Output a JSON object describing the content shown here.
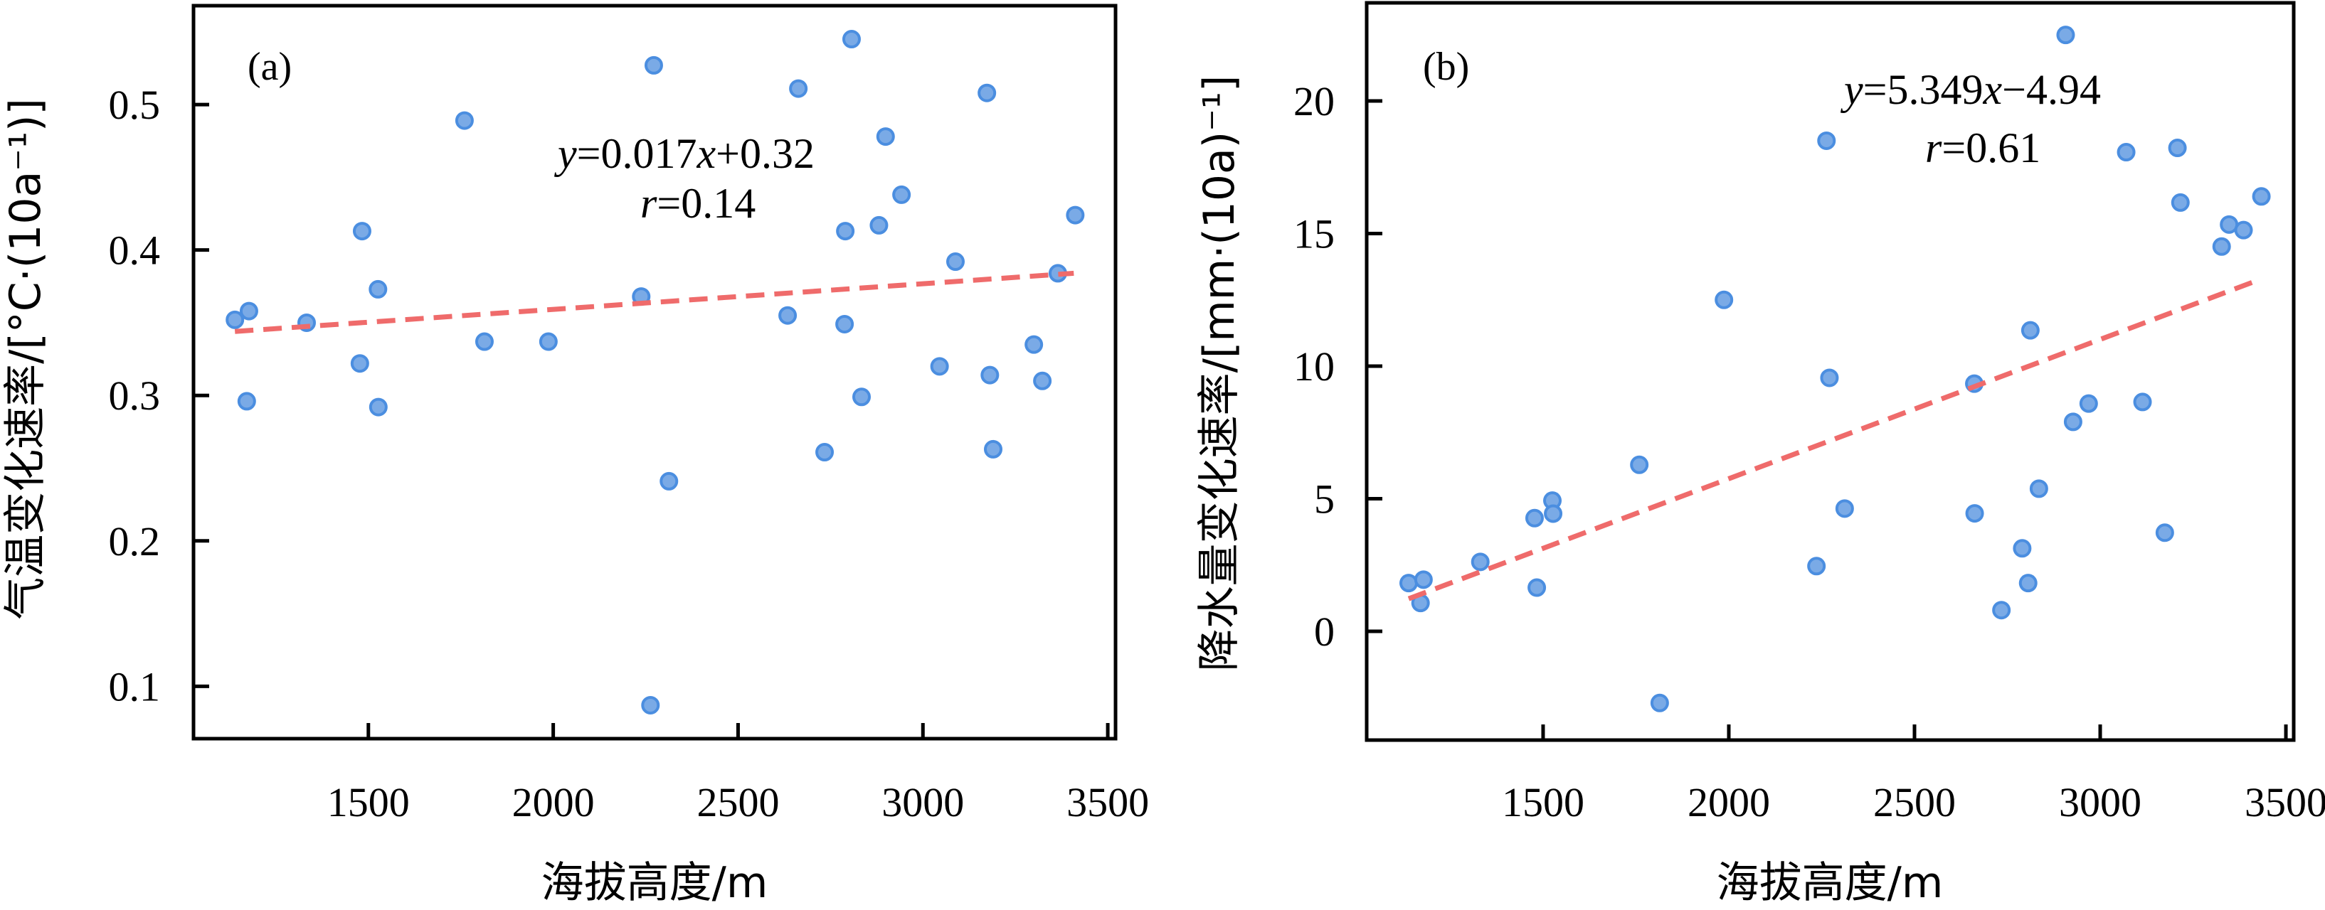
{
  "chart_data": [
    {
      "type": "scatter",
      "panel_label": "(a)",
      "title": "",
      "xlabel": "海拔高度/m",
      "ylabel": "气温变化速率/[°C·(10a⁻¹)]",
      "xlim": [
        1027,
        3521
      ],
      "ylim": [
        0.064,
        0.568
      ],
      "xticks": [
        1500,
        2000,
        2500,
        3000,
        3500
      ],
      "xtick_labels": [
        "1500",
        "2000",
        "2500",
        "3000",
        "3500"
      ],
      "yticks": [
        0.1,
        0.2,
        0.3,
        0.4,
        0.5
      ],
      "ytick_labels": [
        "0.1",
        "0.2",
        "0.3",
        "0.4",
        "0.5"
      ],
      "grid": false,
      "annotation": {
        "equation": "y=0.017x+0.32",
        "equation_parts": [
          "y",
          "=0.017",
          "x",
          "+0.32"
        ],
        "r": "r=0.14",
        "r_parts": [
          "r",
          "=0.14"
        ]
      },
      "trendline": {
        "x": [
          1139,
          3408
        ],
        "y": [
          0.344,
          0.384
        ]
      },
      "colors": {
        "point_fill": "#7aaae6",
        "point_edge": "#4b8ee0",
        "trend": "#ef6b6b"
      },
      "points": {
        "x": [
          1139,
          1177,
          1171,
          1333,
          1483,
          1477,
          1526,
          1527,
          1760,
          1814,
          1987,
          2238,
          2272,
          2807,
          2663,
          3173,
          2899,
          2942,
          2790,
          2881,
          3412,
          3088,
          3365,
          2634,
          2788,
          3300,
          3045,
          3181,
          3323,
          2834,
          2734,
          3190,
          2313,
          2263
        ],
        "y": [
          0.352,
          0.358,
          0.296,
          0.35,
          0.413,
          0.322,
          0.373,
          0.292,
          0.489,
          0.337,
          0.337,
          0.368,
          0.527,
          0.545,
          0.511,
          0.508,
          0.478,
          0.438,
          0.413,
          0.417,
          0.424,
          0.392,
          0.384,
          0.355,
          0.349,
          0.335,
          0.32,
          0.314,
          0.31,
          0.299,
          0.261,
          0.263,
          0.241,
          0.087
        ]
      }
    },
    {
      "type": "scatter",
      "panel_label": "(b)",
      "title": "",
      "xlabel": "海拔高度/m",
      "ylabel": "降水量变化速率/[mm·(10a)⁻¹]",
      "xlim": [
        1025,
        3521
      ],
      "ylim": [
        -4.1,
        23.7
      ],
      "xticks": [
        1500,
        2000,
        2500,
        3000,
        3500
      ],
      "xtick_labels": [
        "1500",
        "2000",
        "2500",
        "3000",
        "3500"
      ],
      "yticks": [
        0,
        5,
        10,
        15,
        20
      ],
      "ytick_labels": [
        "0",
        "5",
        "10",
        "15",
        "20"
      ],
      "grid": false,
      "annotation": {
        "equation": "y=5.349x−4.94",
        "equation_parts": [
          "y",
          "=5.349",
          "x",
          "−4.94"
        ],
        "r": "r=0.61",
        "r_parts": [
          "r",
          "=0.61"
        ]
      },
      "trendline": {
        "x": [
          1138,
          3423
        ],
        "y": [
          1.23,
          13.23
        ]
      },
      "colors": {
        "point_fill": "#7aaae6",
        "point_edge": "#4b8ee0",
        "trend": "#ef6b6b"
      },
      "points": {
        "x": [
          1138,
          1178,
          1170,
          1331,
          1477,
          1483,
          1525,
          1527,
          1759,
          1814,
          1987,
          2236,
          2271,
          2907,
          3070,
          3208,
          3216,
          3434,
          3347,
          3386,
          3327,
          2812,
          2661,
          2969,
          3114,
          2927,
          2312,
          2662,
          2835,
          3174,
          2790,
          2806,
          2734,
          2263
        ],
        "y": [
          1.82,
          1.95,
          1.07,
          2.62,
          4.27,
          1.65,
          4.93,
          4.44,
          6.28,
          -2.7,
          12.5,
          2.46,
          9.56,
          22.49,
          18.07,
          18.23,
          16.17,
          16.4,
          15.34,
          15.13,
          14.51,
          11.35,
          9.34,
          8.59,
          8.65,
          7.9,
          4.63,
          4.45,
          5.38,
          3.72,
          3.13,
          1.82,
          0.8,
          18.5
        ]
      }
    }
  ]
}
